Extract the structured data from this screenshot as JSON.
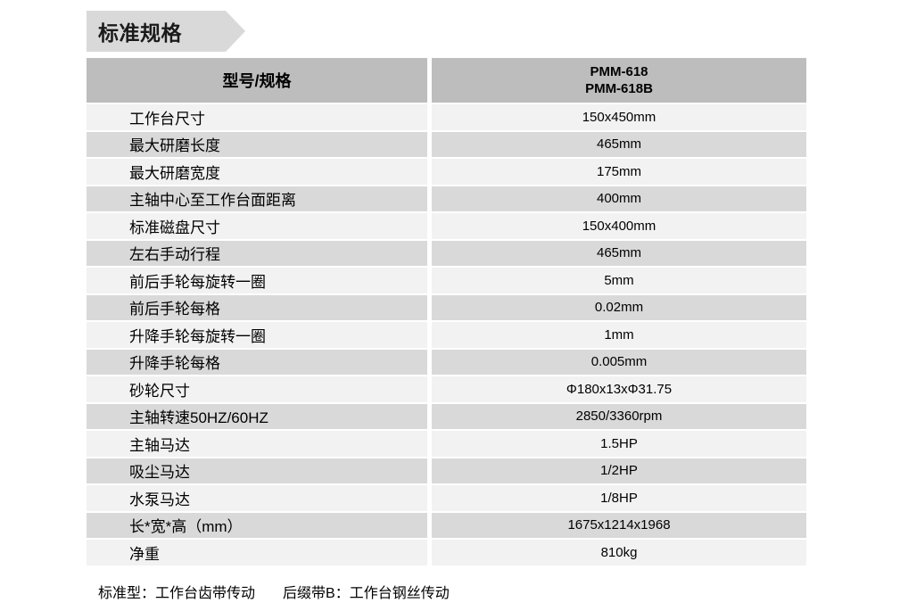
{
  "banner": {
    "title": "标准规格"
  },
  "table": {
    "header": {
      "label_col": "型号/规格",
      "model_lines": [
        "PMM-618",
        "PMM-618B"
      ]
    },
    "rows": [
      {
        "label": "工作台尺寸",
        "value": "150x450mm"
      },
      {
        "label": "最大研磨长度",
        "value": "465mm"
      },
      {
        "label": "最大研磨宽度",
        "value": "175mm"
      },
      {
        "label": "主轴中心至工作台面距离",
        "value": "400mm"
      },
      {
        "label": "标准磁盘尺寸",
        "value": "150x400mm"
      },
      {
        "label": "左右手动行程",
        "value": "465mm"
      },
      {
        "label": "前后手轮每旋转一圈",
        "value": "5mm"
      },
      {
        "label": "前后手轮每格",
        "value": "0.02mm"
      },
      {
        "label": "升降手轮每旋转一圈",
        "value": "1mm"
      },
      {
        "label": "升降手轮每格",
        "value": "0.005mm"
      },
      {
        "label": "砂轮尺寸",
        "value": "Φ180x13xΦ31.75"
      },
      {
        "label": "主轴转速50HZ/60HZ",
        "value": "2850/3360rpm"
      },
      {
        "label": "主轴马达",
        "value": "1.5HP"
      },
      {
        "label": "吸尘马达",
        "value": "1/2HP"
      },
      {
        "label": "水泵马达",
        "value": "1/8HP"
      },
      {
        "label": "长*宽*高（mm）",
        "value": "1675x1214x1968"
      },
      {
        "label": "净重",
        "value": "810kg"
      }
    ]
  },
  "footer": {
    "notes": [
      "标准型：工作台齿带传动",
      "后缀带B：工作台钢丝传动"
    ]
  },
  "colors": {
    "banner_bg": "#d9d9d9",
    "header_bg": "#bdbdbd",
    "row_light": "#f2f2f2",
    "row_dark": "#d9d9d9",
    "text": "#000000"
  }
}
